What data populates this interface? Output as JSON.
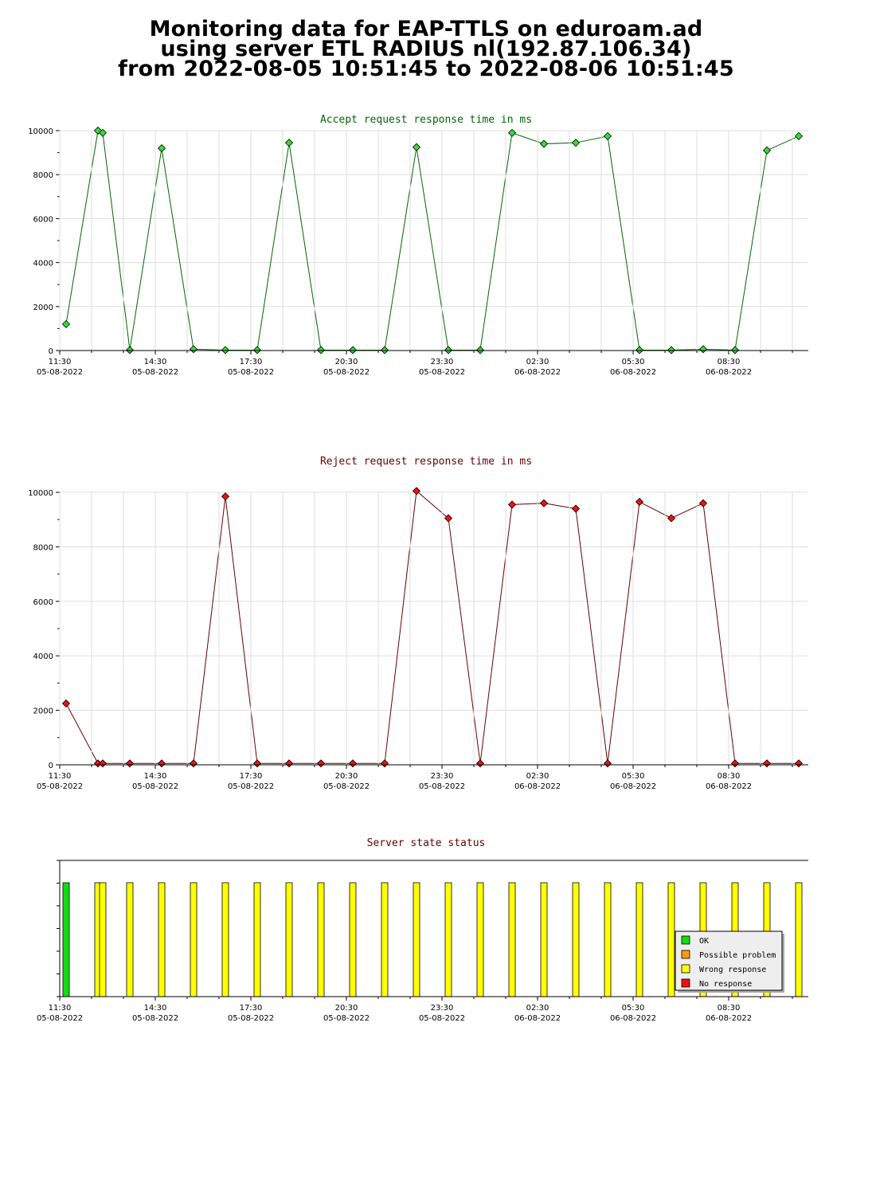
{
  "header": {
    "line1": "Monitoring data for EAP-TTLS on eduroam.ad",
    "line2": "using server ETL RADIUS nl(192.87.106.34)",
    "line3": "from 2022-08-05 10:51:45 to 2022-08-06 10:51:45"
  },
  "x_ticks": [
    {
      "time": "11:30",
      "date": "05-08-2022"
    },
    {
      "time": "14:30",
      "date": "05-08-2022"
    },
    {
      "time": "17:30",
      "date": "05-08-2022"
    },
    {
      "time": "20:30",
      "date": "05-08-2022"
    },
    {
      "time": "23:30",
      "date": "05-08-2022"
    },
    {
      "time": "02:30",
      "date": "06-08-2022"
    },
    {
      "time": "05:30",
      "date": "06-08-2022"
    },
    {
      "time": "08:30",
      "date": "06-08-2022"
    }
  ],
  "chart_data": [
    {
      "type": "line",
      "title": "Accept request response time in ms",
      "title_color": "#006600",
      "line_color": "#006600",
      "marker_color": "#33dd33",
      "ylim": [
        0,
        10000
      ],
      "y_ticks": [
        0,
        2000,
        4000,
        6000,
        8000,
        10000
      ],
      "grid": true,
      "x_unit": "hours after 11:30 on 05-08-2022",
      "x": [
        0.2,
        1.2,
        1.35,
        2.2,
        3.2,
        4.2,
        5.2,
        6.2,
        7.2,
        8.2,
        9.2,
        10.2,
        11.2,
        12.2,
        13.2,
        14.2,
        15.2,
        16.2,
        17.2,
        18.2,
        19.2,
        20.2,
        21.2,
        22.2,
        23.2
      ],
      "values": [
        1200,
        10000,
        9900,
        20,
        9200,
        60,
        20,
        20,
        9450,
        20,
        20,
        20,
        9250,
        20,
        20,
        9900,
        9400,
        9450,
        9750,
        20,
        20,
        60,
        20,
        9100,
        9750
      ]
    },
    {
      "type": "line",
      "title": "Reject request response time in ms",
      "title_color": "#660000",
      "line_color": "#660000",
      "marker_color": "#ee1111",
      "ylim": [
        0,
        10000
      ],
      "y_ticks": [
        0,
        2000,
        4000,
        6000,
        8000,
        10000
      ],
      "grid": true,
      "x_unit": "hours after 11:30 on 05-08-2022",
      "x": [
        0.2,
        1.2,
        1.35,
        2.2,
        3.2,
        4.2,
        5.2,
        6.2,
        7.2,
        8.2,
        9.2,
        10.2,
        11.2,
        12.2,
        13.2,
        14.2,
        15.2,
        16.2,
        17.2,
        18.2,
        19.2,
        20.2,
        21.2,
        22.2,
        23.2
      ],
      "values": [
        2250,
        50,
        50,
        50,
        50,
        50,
        9850,
        50,
        50,
        50,
        50,
        50,
        10050,
        9050,
        50,
        9550,
        9600,
        9400,
        50,
        9650,
        9050,
        9600,
        50,
        50,
        50
      ]
    },
    {
      "type": "bar",
      "title": "Server state status",
      "title_color": "#660000",
      "x_unit": "hours after 11:30 on 05-08-2022",
      "x": [
        0.2,
        1.2,
        1.35,
        2.2,
        3.2,
        4.2,
        5.2,
        6.2,
        7.2,
        8.2,
        9.2,
        10.2,
        11.2,
        12.2,
        13.2,
        14.2,
        15.2,
        16.2,
        17.2,
        18.2,
        19.2,
        20.2,
        21.2,
        22.2,
        23.2
      ],
      "states": [
        "OK",
        "Wrong response",
        "Wrong response",
        "Wrong response",
        "Wrong response",
        "Wrong response",
        "Wrong response",
        "Wrong response",
        "Wrong response",
        "Wrong response",
        "Wrong response",
        "Wrong response",
        "Wrong response",
        "Wrong response",
        "Wrong response",
        "Wrong response",
        "Wrong response",
        "Wrong response",
        "Wrong response",
        "Wrong response",
        "Wrong response",
        "Wrong response",
        "Wrong response",
        "Wrong response",
        "Wrong response"
      ],
      "legend": [
        {
          "label": "OK",
          "color": "#11dd11"
        },
        {
          "label": "Possible problem",
          "color": "#ff9911"
        },
        {
          "label": "Wrong response",
          "color": "#ffff00"
        },
        {
          "label": "No response",
          "color": "#ee1111"
        }
      ],
      "legend_position": "bottom-right"
    }
  ]
}
